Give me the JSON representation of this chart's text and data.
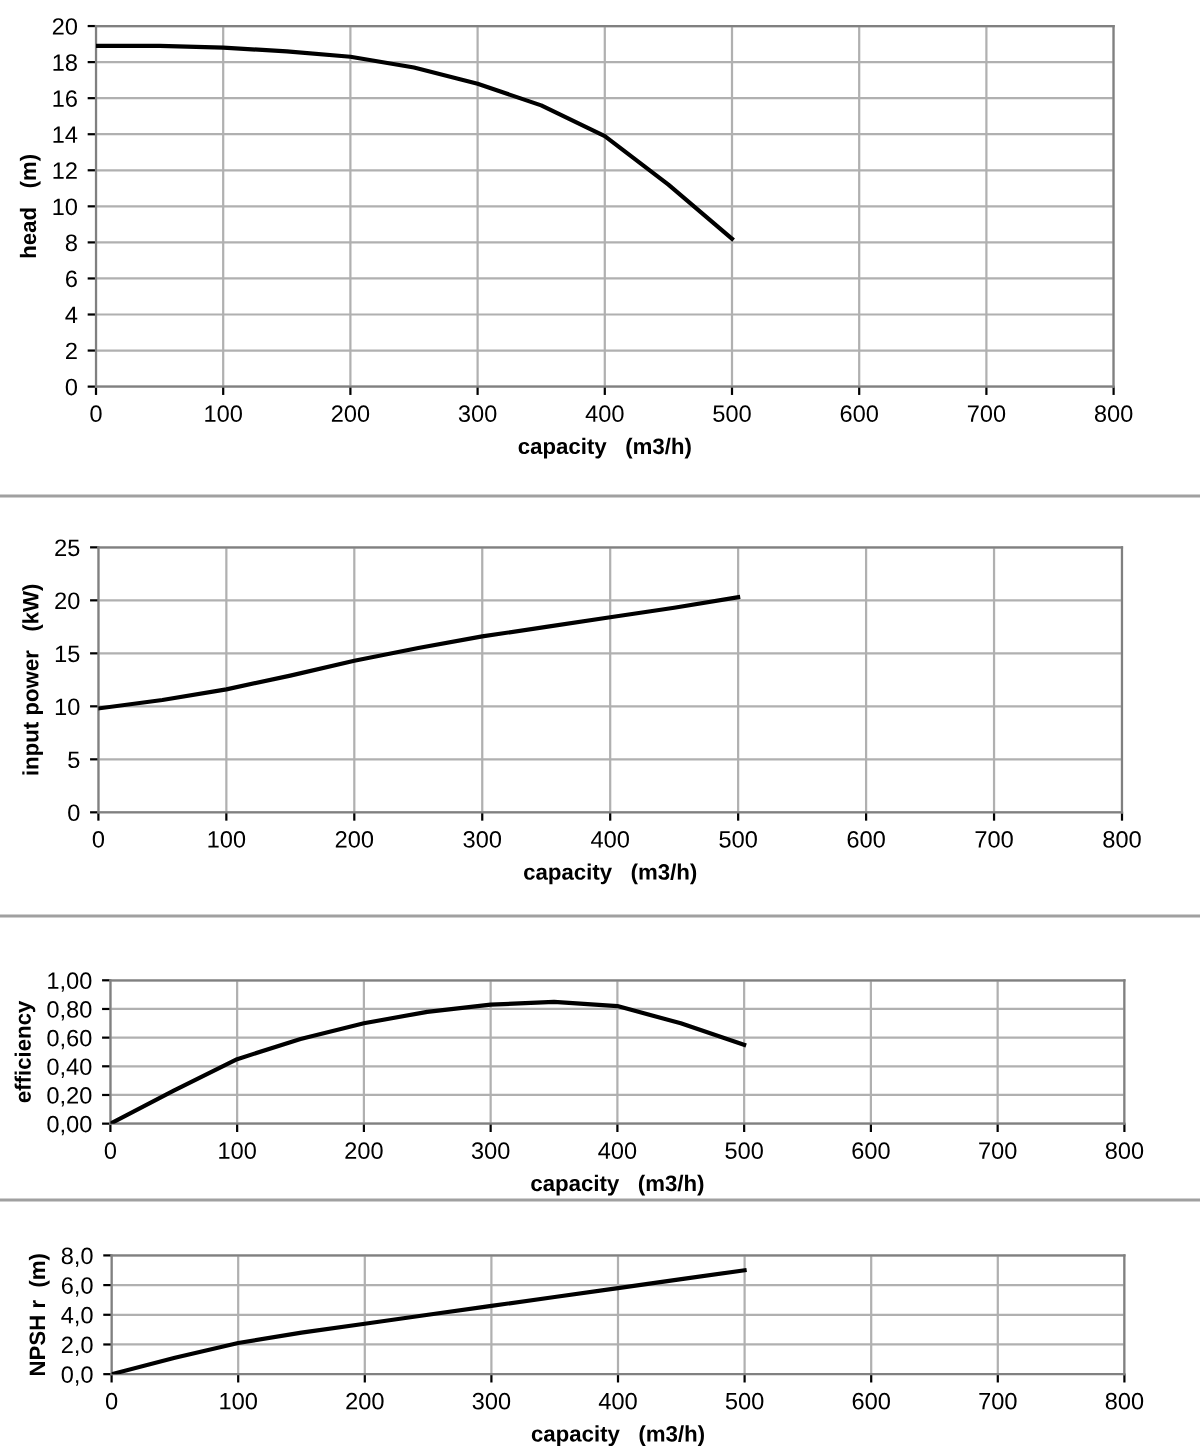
{
  "chart_data": [
    {
      "type": "line",
      "xlabel": "capacity   (m3/h)",
      "ylabel": "head   (m)",
      "x": [
        0,
        50,
        100,
        150,
        200,
        250,
        300,
        350,
        400,
        450,
        500
      ],
      "xlim": [
        0,
        800
      ],
      "xticks": [
        0,
        100,
        200,
        300,
        400,
        500,
        600,
        700,
        800
      ],
      "ylim": [
        0,
        20
      ],
      "yticks": [
        0,
        2,
        4,
        6,
        8,
        10,
        12,
        14,
        16,
        18,
        20
      ],
      "grid": true,
      "series": [
        {
          "color": "#000000",
          "values": [
            18.9,
            18.9,
            18.8,
            18.6,
            18.3,
            17.7,
            16.8,
            15.6,
            13.9,
            11.2,
            8.2
          ]
        }
      ]
    },
    {
      "type": "line",
      "xlabel": "capacity   (m3/h)",
      "ylabel": "input power   (kW)",
      "x": [
        0,
        50,
        100,
        150,
        200,
        250,
        300,
        350,
        400,
        450,
        500
      ],
      "xlim": [
        0,
        800
      ],
      "xticks": [
        0,
        100,
        200,
        300,
        400,
        500,
        600,
        700,
        800
      ],
      "ylim": [
        0,
        25
      ],
      "yticks": [
        0,
        5,
        10,
        15,
        20,
        25
      ],
      "grid": true,
      "series": [
        {
          "color": "#000000",
          "values": [
            9.8,
            10.6,
            11.6,
            12.9,
            14.3,
            15.5,
            16.6,
            17.5,
            18.4,
            19.3,
            20.3
          ]
        }
      ]
    },
    {
      "type": "line",
      "xlabel": "capacity   (m3/h)",
      "ylabel": "efficiency",
      "x": [
        0,
        50,
        100,
        150,
        200,
        250,
        300,
        350,
        400,
        450,
        500
      ],
      "xlim": [
        0,
        800
      ],
      "xticks": [
        0,
        100,
        200,
        300,
        400,
        500,
        600,
        700,
        800
      ],
      "ylim": [
        0,
        1
      ],
      "yticks": [
        {
          "value": 0,
          "label": "0,00"
        },
        {
          "value": 0.2,
          "label": "0,20"
        },
        {
          "value": 0.4,
          "label": "0,40"
        },
        {
          "value": 0.6,
          "label": "0,60"
        },
        {
          "value": 0.8,
          "label": "0,80"
        },
        {
          "value": 1,
          "label": "1,00"
        }
      ],
      "grid": true,
      "series": [
        {
          "color": "#000000",
          "values": [
            0,
            0.23,
            0.45,
            0.59,
            0.7,
            0.78,
            0.83,
            0.85,
            0.82,
            0.7,
            0.55
          ]
        }
      ]
    },
    {
      "type": "line",
      "xlabel": "capacity   (m3/h)",
      "ylabel": "NPSH r  (m)",
      "x": [
        0,
        50,
        100,
        150,
        200,
        250,
        300,
        350,
        400,
        450,
        500
      ],
      "xlim": [
        0,
        800
      ],
      "xticks": [
        0,
        100,
        200,
        300,
        400,
        500,
        600,
        700,
        800
      ],
      "ylim": [
        0,
        8
      ],
      "yticks": [
        {
          "value": 0,
          "label": "0,0"
        },
        {
          "value": 2,
          "label": "2,0"
        },
        {
          "value": 4,
          "label": "4,0"
        },
        {
          "value": 6,
          "label": "6,0"
        },
        {
          "value": 8,
          "label": "8,0"
        }
      ],
      "grid": true,
      "series": [
        {
          "color": "#000000",
          "values": [
            0,
            1.1,
            2.1,
            2.8,
            3.4,
            4.0,
            4.6,
            5.2,
            5.8,
            6.4,
            7.0
          ]
        }
      ]
    }
  ]
}
